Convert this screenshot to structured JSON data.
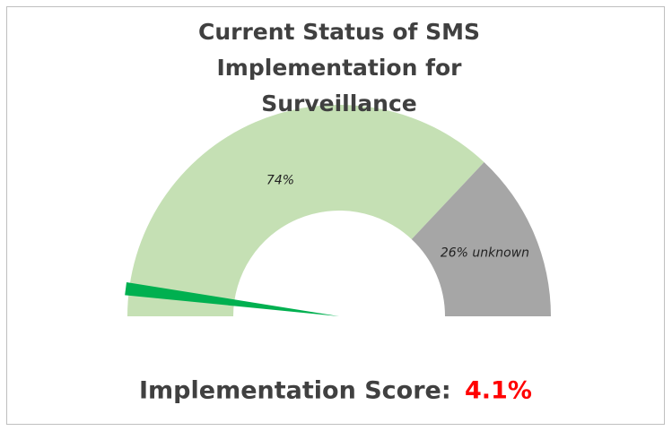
{
  "chart_data": {
    "type": "gauge",
    "title": "Current Status of SMS Implementation for Surveillance",
    "values": [
      74,
      26
    ],
    "value_labels": [
      "74%",
      "26% unknown"
    ],
    "colors": [
      "#c5e0b4",
      "#a6a6a6"
    ],
    "needle": {
      "value": 4.1,
      "label": "4.1%",
      "color": "#00b050"
    },
    "score_label": "Implementation Score:"
  }
}
